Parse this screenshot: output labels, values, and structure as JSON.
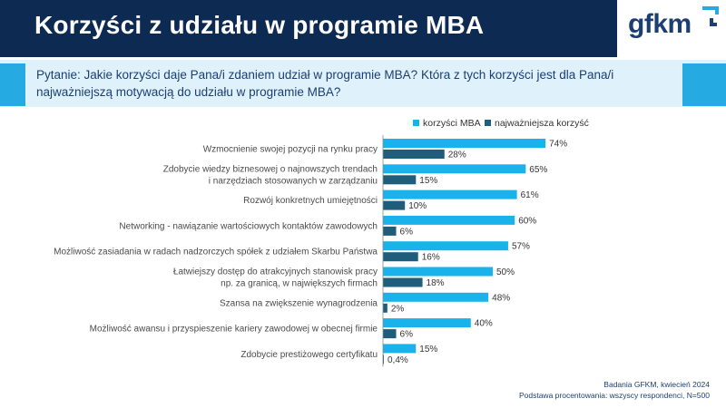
{
  "header": {
    "title": "Korzyści z udziału w programie MBA",
    "logo_text": "gfkm"
  },
  "question": {
    "line1": "Pytanie: Jakie korzyści daje Pana/i zdaniem udział w programie MBA? Która z tych korzyści jest dla Pana/i",
    "line2": "najważniejszą motywacją do udziału w programie MBA?"
  },
  "footer": {
    "line1": "Badania GFKM, kwiecień 2024",
    "line2": "Podstawa procentowania:  wszyscy respondenci, N=500"
  },
  "colors": {
    "series1": "#1ab2ea",
    "series2": "#1f5e7a",
    "navy": "#0d2a52"
  },
  "chart_data": {
    "type": "bar",
    "orientation": "horizontal",
    "categories": [
      [
        "Wzmocnienie swojej pozycji na rynku pracy"
      ],
      [
        "Zdobycie wiedzy biznesowej o najnowszych trendach",
        "i narzędziach stosowanych w zarządzaniu"
      ],
      [
        "Rozwój konkretnych umiejętności"
      ],
      [
        "Networking - nawiązanie wartościowych kontaktów zawodowych"
      ],
      [
        "Możliwość zasiadania w radach nadzorczych spółek z udziałem Skarbu Państwa"
      ],
      [
        "Łatwiejszy dostęp do atrakcyjnych stanowisk pracy",
        "np. za granicą, w największych firmach"
      ],
      [
        "Szansa na zwiększenie wynagrodzenia"
      ],
      [
        "Możliwość awansu i przyspieszenie kariery zawodowej w obecnej firmie"
      ],
      [
        "Zdobycie prestiżowego certyfikatu"
      ]
    ],
    "series": [
      {
        "name": "korzyści MBA",
        "values": [
          74,
          65,
          61,
          60,
          57,
          50,
          48,
          40,
          15
        ],
        "labels": [
          "74%",
          "65%",
          "61%",
          "60%",
          "57%",
          "50%",
          "48%",
          "40%",
          "15%"
        ]
      },
      {
        "name": "najważniejsza korzyść",
        "values": [
          28,
          15,
          10,
          6,
          16,
          18,
          2,
          6,
          0.4
        ],
        "labels": [
          "28%",
          "15%",
          "10%",
          "6%",
          "16%",
          "18%",
          "2%",
          "6%",
          "0,4%"
        ]
      }
    ],
    "xlim": [
      0,
      100
    ],
    "legend_position": "top"
  }
}
